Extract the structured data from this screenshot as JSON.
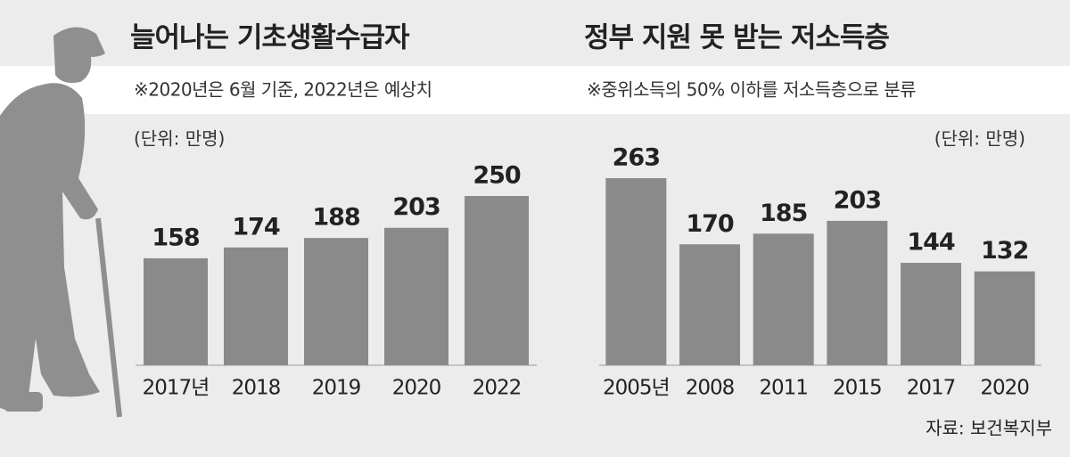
{
  "chart_data": [
    {
      "type": "bar",
      "title": "늘어나는 기초생활수급자",
      "subtitle": "※2020년은 6월 기준, 2022년은 예상치",
      "unit": "(단위: 만명)",
      "categories": [
        "2017년",
        "2018",
        "2019",
        "2020",
        "2022"
      ],
      "values": [
        158,
        174,
        188,
        203,
        250
      ],
      "color": "#8a8a8a"
    },
    {
      "type": "bar",
      "title": "정부 지원 못 받는 저소득층",
      "subtitle": "※중위소득의 50% 이하를 저소득층으로 분류",
      "unit": "(단위: 만명)",
      "categories": [
        "2005년",
        "2008",
        "2011",
        "2015",
        "2017",
        "2020"
      ],
      "values": [
        263,
        170,
        185,
        203,
        144,
        132
      ],
      "color": "#8a8a8a",
      "source": "자료: 보건복지부"
    }
  ]
}
